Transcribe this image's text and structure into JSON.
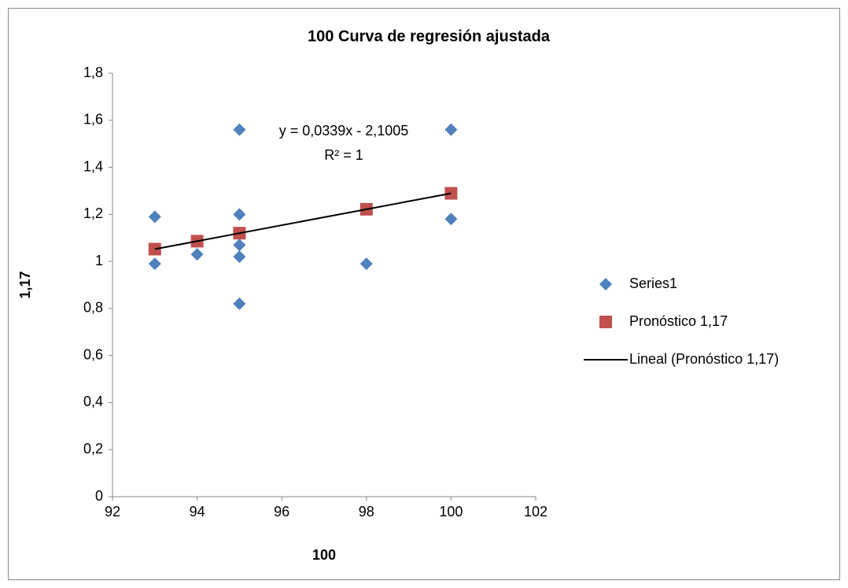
{
  "chart_data": {
    "type": "scatter",
    "title": "100 Curva de regresión ajustada",
    "x_label": "100",
    "y_label": "1,17",
    "annotations": [
      "y = 0,0339x - 2,1005",
      "R² = 1"
    ],
    "xlim": [
      92,
      102
    ],
    "xticks": [
      92,
      94,
      96,
      98,
      100,
      102
    ],
    "ylim": [
      0,
      1.8
    ],
    "yticks": [
      0,
      {
        "value": 0.2,
        "label": "0,2"
      },
      {
        "value": 0.4,
        "label": "0,4"
      },
      {
        "value": 0.6,
        "label": "0,6"
      },
      {
        "value": 0.8,
        "label": "0,8"
      },
      1,
      {
        "value": 1.2,
        "label": "1,2"
      },
      {
        "value": 1.4,
        "label": "1,4"
      },
      {
        "value": 1.6,
        "label": "1,6"
      },
      {
        "value": 1.8,
        "label": "1,8"
      }
    ],
    "legend": "right",
    "series": [
      {
        "name": "Series1",
        "color": "#4f81bd",
        "marker": "diamond",
        "x": [
          93,
          93,
          94,
          95,
          95,
          95,
          95,
          95,
          98,
          100,
          100
        ],
        "values": [
          1.19,
          0.99,
          1.03,
          1.56,
          1.2,
          1.07,
          1.02,
          0.82,
          0.99,
          1.56,
          1.18
        ]
      },
      {
        "name": "Pronóstico 1,17",
        "color": "#c0504d",
        "marker": "square",
        "x": [
          93,
          94,
          95,
          98,
          100
        ],
        "values": [
          1.0522,
          1.0861,
          1.12,
          1.2217,
          1.2895
        ]
      },
      {
        "name": "Lineal (Pronóstico 1,17)",
        "color": "#000000",
        "marker": "line",
        "x": [
          93,
          100
        ],
        "values": [
          1.0522,
          1.2895
        ]
      }
    ]
  }
}
